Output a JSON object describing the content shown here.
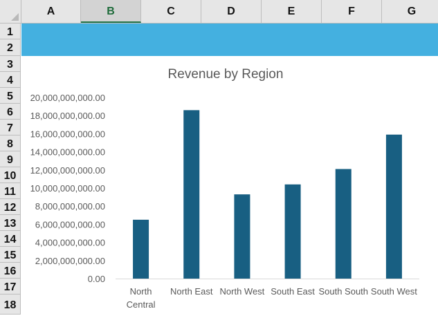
{
  "spreadsheet": {
    "columns": [
      "A",
      "B",
      "C",
      "D",
      "E",
      "F",
      "G"
    ],
    "selected_column": "B",
    "rows": [
      "1",
      "2",
      "3",
      "4",
      "5",
      "6",
      "7",
      "8",
      "9",
      "10",
      "11",
      "12",
      "13",
      "14",
      "15",
      "16",
      "17",
      "18"
    ]
  },
  "colors": {
    "header_band": "#44b0e0",
    "bar": "#185f82",
    "selected_column_text": "#1e6b3a"
  },
  "chart_data": {
    "type": "bar",
    "title": "Revenue by Region",
    "categories": [
      "North Central",
      "North East",
      "North West",
      "South East",
      "South South",
      "South West"
    ],
    "category_lines": [
      [
        "North",
        "Central"
      ],
      [
        "North East"
      ],
      [
        "North West"
      ],
      [
        "South East"
      ],
      [
        "South South"
      ],
      [
        "South West"
      ]
    ],
    "values": [
      6500000000,
      18600000000,
      9300000000,
      10400000000,
      12100000000,
      15900000000
    ],
    "ylim": [
      0,
      20000000000
    ],
    "yticks": [
      0,
      2000000000,
      4000000000,
      6000000000,
      8000000000,
      10000000000,
      12000000000,
      14000000000,
      16000000000,
      18000000000,
      20000000000
    ],
    "ytick_labels": [
      "0.00",
      "2,000,000,000.00",
      "4,000,000,000.00",
      "6,000,000,000.00",
      "8,000,000,000.00",
      "10,000,000,000.00",
      "12,000,000,000.00",
      "14,000,000,000.00",
      "16,000,000,000.00",
      "18,000,000,000.00",
      "20,000,000,000.00"
    ],
    "grid": false,
    "legend": "none"
  }
}
